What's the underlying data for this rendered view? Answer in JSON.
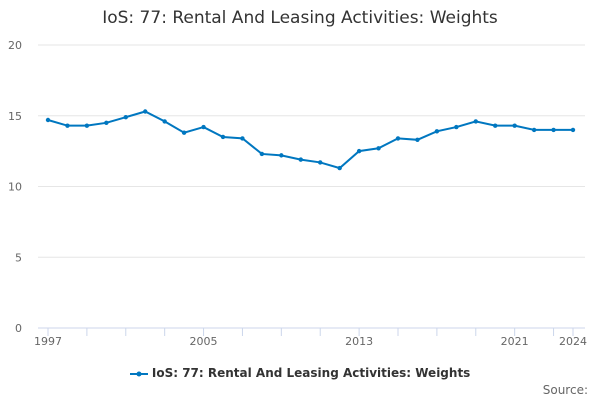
{
  "chart_data": {
    "type": "line",
    "title": "IoS: 77: Rental And Leasing Activities: Weights",
    "x": [
      1997,
      1998,
      1999,
      2000,
      2001,
      2002,
      2003,
      2004,
      2005,
      2006,
      2007,
      2008,
      2009,
      2010,
      2011,
      2012,
      2013,
      2014,
      2015,
      2016,
      2017,
      2018,
      2019,
      2020,
      2021,
      2022,
      2023,
      2024
    ],
    "series": [
      {
        "name": "IoS: 77: Rental And Leasing Activities: Weights",
        "color": "#0077c0",
        "values": [
          14.7,
          14.3,
          14.3,
          14.5,
          14.9,
          15.3,
          14.6,
          13.8,
          14.2,
          13.5,
          13.4,
          12.3,
          12.2,
          11.9,
          11.7,
          11.3,
          12.5,
          12.7,
          13.4,
          13.3,
          13.9,
          14.2,
          14.6,
          14.3,
          14.3,
          14.0,
          14.0,
          14.0
        ]
      }
    ],
    "ylim": [
      0,
      20
    ],
    "yticks": [
      "0",
      "5",
      "10",
      "15",
      "20"
    ],
    "xticks": [
      "1997",
      "2005",
      "2013",
      "2021",
      "2024"
    ],
    "grid": true,
    "legend": "bottom",
    "source_label": "Source:"
  }
}
